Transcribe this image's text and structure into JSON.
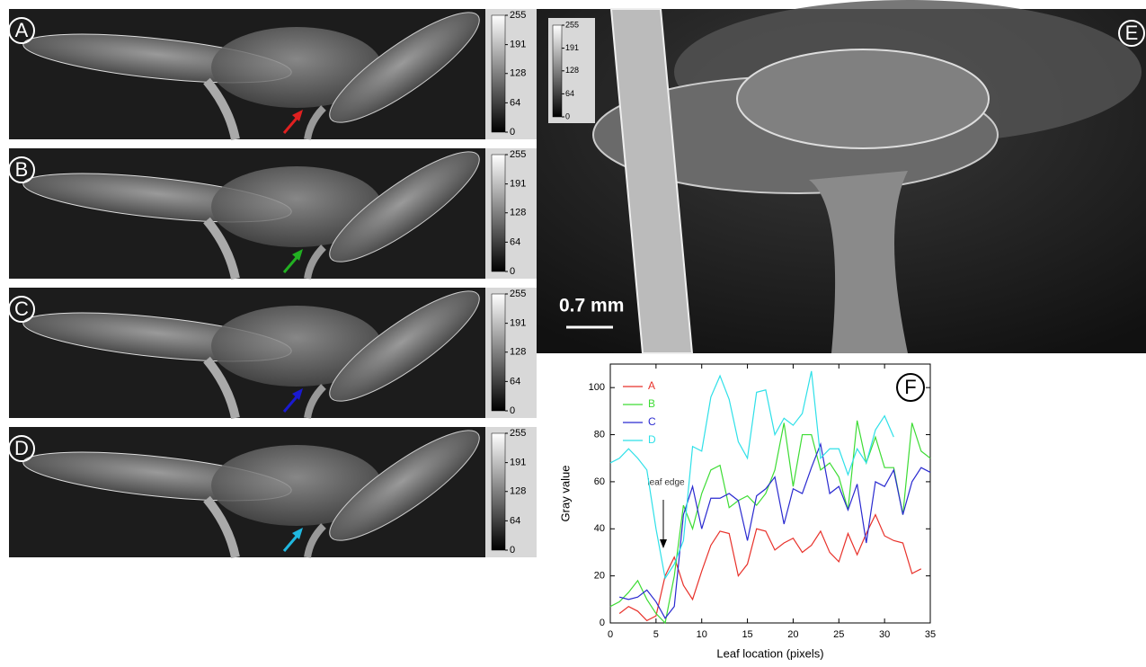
{
  "panels": [
    {
      "label": "A",
      "colorbar_ticks": [
        255,
        191,
        128,
        64,
        0
      ]
    },
    {
      "label": "B",
      "colorbar_ticks": [
        255,
        191,
        128,
        64,
        0
      ]
    },
    {
      "label": "C",
      "colorbar_ticks": [
        255,
        191,
        128,
        64,
        0
      ]
    },
    {
      "label": "D",
      "colorbar_ticks": [
        255,
        191,
        128,
        64,
        0
      ]
    }
  ],
  "panel_e": {
    "label": "E",
    "colorbar_ticks": [
      255,
      191,
      128,
      64,
      0
    ],
    "scale_bar": "0.7 mm"
  },
  "chart_data": {
    "type": "line",
    "panel_label": "F",
    "x_label": "Leaf location (pixels)",
    "y_label": "Gray value",
    "annotation": "leaf edge",
    "xlim": [
      0,
      35
    ],
    "xticks": [
      0,
      5,
      10,
      15,
      20,
      25,
      30,
      35
    ],
    "ylim": [
      0,
      110
    ],
    "yticks": [
      0,
      20,
      40,
      60,
      80,
      100
    ],
    "legend": "top-left",
    "series": [
      {
        "name": "A",
        "color": "#e8312a",
        "x": [
          1,
          2,
          3,
          4,
          5,
          6,
          7,
          8,
          9,
          10,
          11,
          12,
          13,
          14,
          15,
          16,
          17,
          18,
          19,
          20,
          21,
          22,
          23,
          24,
          25,
          26,
          27,
          28,
          29,
          30,
          31,
          32,
          33,
          34
        ],
        "values": [
          4,
          7,
          5,
          1,
          3,
          20,
          28,
          16,
          10,
          22,
          33,
          39,
          38,
          20,
          25,
          40,
          39,
          31,
          34,
          36,
          30,
          33,
          39,
          30,
          26,
          38,
          29,
          38,
          46,
          37,
          35,
          34,
          21,
          23
        ]
      },
      {
        "name": "B",
        "color": "#3ddc34",
        "x": [
          0,
          1,
          2,
          3,
          4,
          5,
          6,
          7,
          8,
          9,
          10,
          11,
          12,
          13,
          14,
          15,
          16,
          17,
          18,
          19,
          20,
          21,
          22,
          23,
          24,
          25,
          26,
          27,
          28,
          29,
          30,
          31,
          32,
          33,
          34,
          35
        ],
        "values": [
          7,
          9,
          13,
          18,
          10,
          4,
          0,
          20,
          50,
          40,
          55,
          65,
          67,
          49,
          52,
          54,
          50,
          55,
          65,
          85,
          58,
          80,
          80,
          65,
          68,
          62,
          48,
          86,
          68,
          79,
          66,
          66,
          46,
          85,
          73,
          70
        ]
      },
      {
        "name": "C",
        "color": "#2a2ad0",
        "x": [
          1,
          2,
          3,
          4,
          5,
          6,
          7,
          8,
          9,
          10,
          11,
          12,
          13,
          14,
          15,
          16,
          17,
          18,
          19,
          20,
          21,
          22,
          23,
          24,
          25,
          26,
          27,
          28,
          29,
          30,
          31,
          32,
          33,
          34,
          35
        ],
        "values": [
          11,
          10,
          11,
          14,
          9,
          2,
          7,
          46,
          58,
          40,
          53,
          53,
          55,
          52,
          35,
          54,
          57,
          62,
          42,
          57,
          55,
          66,
          76,
          55,
          58,
          48,
          59,
          34,
          60,
          58,
          65,
          46,
          60,
          66,
          64
        ]
      },
      {
        "name": "D",
        "color": "#2ee0e8",
        "x": [
          0,
          1,
          2,
          3,
          4,
          5,
          6,
          7,
          8,
          9,
          10,
          11,
          12,
          13,
          14,
          15,
          16,
          17,
          18,
          19,
          20,
          21,
          22,
          23,
          24,
          25,
          26,
          27,
          28,
          29,
          30,
          31
        ],
        "values": [
          68,
          70,
          74,
          70,
          65,
          40,
          19,
          25,
          35,
          75,
          73,
          96,
          105,
          95,
          77,
          70,
          98,
          99,
          80,
          87,
          84,
          89,
          107,
          70,
          74,
          74,
          63,
          74,
          68,
          82,
          88,
          79
        ]
      }
    ]
  }
}
